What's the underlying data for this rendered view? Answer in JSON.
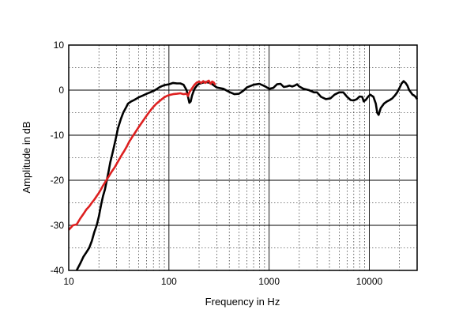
{
  "chart_data": {
    "type": "line",
    "xlabel": "Frequency in Hz",
    "ylabel": "Amplitude in dB",
    "x_scale": "log",
    "xlim": [
      10,
      30000
    ],
    "ylim": [
      -40,
      10
    ],
    "x_ticks": [
      {
        "value": 10,
        "label": "10"
      },
      {
        "value": 100,
        "label": "100"
      },
      {
        "value": 1000,
        "label": "1000"
      },
      {
        "value": 10000,
        "label": "10000"
      }
    ],
    "y_ticks": [
      {
        "value": 10,
        "label": "10"
      },
      {
        "value": 0,
        "label": "0"
      },
      {
        "value": -10,
        "label": "-10"
      },
      {
        "value": -20,
        "label": "-20"
      },
      {
        "value": -30,
        "label": "-30"
      },
      {
        "value": -40,
        "label": "-40"
      }
    ],
    "grid": true,
    "series": [
      {
        "color": "#000000",
        "points": [
          [
            12,
            -40
          ],
          [
            13,
            -38.5
          ],
          [
            14,
            -37
          ],
          [
            15,
            -36
          ],
          [
            16,
            -35
          ],
          [
            17,
            -33.5
          ],
          [
            18,
            -31.5
          ],
          [
            19,
            -30
          ],
          [
            20,
            -28
          ],
          [
            21,
            -25.5
          ],
          [
            22,
            -23.5
          ],
          [
            23,
            -22
          ],
          [
            24,
            -20
          ],
          [
            25,
            -18
          ],
          [
            26,
            -16
          ],
          [
            27,
            -14.5
          ],
          [
            28,
            -13
          ],
          [
            29,
            -11.5
          ],
          [
            30,
            -10
          ],
          [
            31,
            -8.5
          ],
          [
            33,
            -6.5
          ],
          [
            35,
            -5
          ],
          [
            37,
            -4
          ],
          [
            39,
            -3
          ],
          [
            42,
            -2.5
          ],
          [
            45,
            -2.2
          ],
          [
            50,
            -1.6
          ],
          [
            55,
            -1.2
          ],
          [
            60,
            -0.8
          ],
          [
            65,
            -0.5
          ],
          [
            70,
            -0.2
          ],
          [
            75,
            0.2
          ],
          [
            80,
            0.6
          ],
          [
            85,
            0.9
          ],
          [
            90,
            1.1
          ],
          [
            100,
            1.3
          ],
          [
            110,
            1.6
          ],
          [
            120,
            1.5
          ],
          [
            130,
            1.5
          ],
          [
            140,
            1.2
          ],
          [
            150,
            0
          ],
          [
            155,
            -1.5
          ],
          [
            160,
            -2.8
          ],
          [
            165,
            -2.5
          ],
          [
            170,
            -1.2
          ],
          [
            180,
            0.3
          ],
          [
            190,
            1
          ],
          [
            200,
            1.4
          ],
          [
            230,
            1.8
          ],
          [
            260,
            1.6
          ],
          [
            300,
            0.6
          ],
          [
            350,
            0.3
          ],
          [
            400,
            -0.4
          ],
          [
            450,
            -0.9
          ],
          [
            500,
            -0.8
          ],
          [
            550,
            -0.2
          ],
          [
            600,
            0.6
          ],
          [
            700,
            1.2
          ],
          [
            800,
            1.4
          ],
          [
            900,
            0.9
          ],
          [
            1000,
            0.3
          ],
          [
            1100,
            0.5
          ],
          [
            1200,
            1.3
          ],
          [
            1300,
            1.4
          ],
          [
            1400,
            0.7
          ],
          [
            1500,
            0.8
          ],
          [
            1600,
            1
          ],
          [
            1700,
            0.8
          ],
          [
            1800,
            1
          ],
          [
            1900,
            1.3
          ],
          [
            2000,
            0.8
          ],
          [
            2200,
            0.3
          ],
          [
            2500,
            0
          ],
          [
            2800,
            -0.5
          ],
          [
            3000,
            -0.5
          ],
          [
            3300,
            -1.5
          ],
          [
            3700,
            -2
          ],
          [
            4100,
            -1.8
          ],
          [
            4500,
            -1
          ],
          [
            5000,
            -0.5
          ],
          [
            5500,
            -0.5
          ],
          [
            6000,
            -1.5
          ],
          [
            6500,
            -2.2
          ],
          [
            7000,
            -2.3
          ],
          [
            7500,
            -2
          ],
          [
            8000,
            -1.4
          ],
          [
            8500,
            -1.5
          ],
          [
            8800,
            -2.5
          ],
          [
            9200,
            -2.2
          ],
          [
            9700,
            -1.5
          ],
          [
            10200,
            -1
          ],
          [
            11000,
            -1.5
          ],
          [
            11600,
            -3
          ],
          [
            12000,
            -5
          ],
          [
            12400,
            -5.5
          ],
          [
            13000,
            -4
          ],
          [
            14000,
            -3
          ],
          [
            15000,
            -2.5
          ],
          [
            16000,
            -2.2
          ],
          [
            17000,
            -1.8
          ],
          [
            18000,
            -1.2
          ],
          [
            19000,
            -0.5
          ],
          [
            20000,
            0.5
          ],
          [
            21000,
            1.5
          ],
          [
            22000,
            2
          ],
          [
            23000,
            1.6
          ],
          [
            24000,
            1
          ],
          [
            25000,
            0
          ],
          [
            26000,
            -0.5
          ],
          [
            27000,
            -1
          ],
          [
            28000,
            -1.2
          ],
          [
            29000,
            -1.5
          ],
          [
            30000,
            -2
          ]
        ]
      },
      {
        "color": "#dd2020",
        "points": [
          [
            10,
            -31
          ],
          [
            10.5,
            -30.5
          ],
          [
            11,
            -30
          ],
          [
            12,
            -29.8
          ],
          [
            13,
            -28.5
          ],
          [
            14,
            -27.5
          ],
          [
            15,
            -26.5
          ],
          [
            16,
            -25.8
          ],
          [
            17,
            -25
          ],
          [
            18,
            -24.3
          ],
          [
            19,
            -23.5
          ],
          [
            20,
            -22.8
          ],
          [
            21,
            -22
          ],
          [
            22,
            -21.2
          ],
          [
            23,
            -20.5
          ],
          [
            24,
            -19.8
          ],
          [
            25,
            -19.2
          ],
          [
            26,
            -18.6
          ],
          [
            27,
            -18
          ],
          [
            28,
            -17.5
          ],
          [
            29,
            -17
          ],
          [
            30,
            -16.4
          ],
          [
            32,
            -15.3
          ],
          [
            34,
            -14.3
          ],
          [
            36,
            -13.4
          ],
          [
            38,
            -12.5
          ],
          [
            40,
            -11.5
          ],
          [
            43,
            -10.4
          ],
          [
            46,
            -9.4
          ],
          [
            50,
            -8.2
          ],
          [
            54,
            -7.1
          ],
          [
            58,
            -6.1
          ],
          [
            62,
            -5.2
          ],
          [
            66,
            -4.4
          ],
          [
            70,
            -3.7
          ],
          [
            75,
            -3
          ],
          [
            80,
            -2.5
          ],
          [
            85,
            -2
          ],
          [
            90,
            -1.6
          ],
          [
            95,
            -1.3
          ],
          [
            100,
            -1.1
          ],
          [
            110,
            -0.9
          ],
          [
            120,
            -0.8
          ],
          [
            130,
            -0.7
          ],
          [
            140,
            -0.9
          ],
          [
            150,
            -0.8
          ],
          [
            155,
            -1.3
          ],
          [
            160,
            -0.5
          ],
          [
            170,
            0.4
          ],
          [
            180,
            1.2
          ],
          [
            190,
            1.7
          ],
          [
            200,
            1.9
          ],
          [
            210,
            1.6
          ],
          [
            220,
            2
          ],
          [
            230,
            1.6
          ],
          [
            240,
            1.9
          ],
          [
            250,
            2.1
          ],
          [
            260,
            1.4
          ],
          [
            270,
            1.9
          ],
          [
            280,
            1.7
          ],
          [
            290,
            1.2
          ]
        ]
      }
    ]
  }
}
